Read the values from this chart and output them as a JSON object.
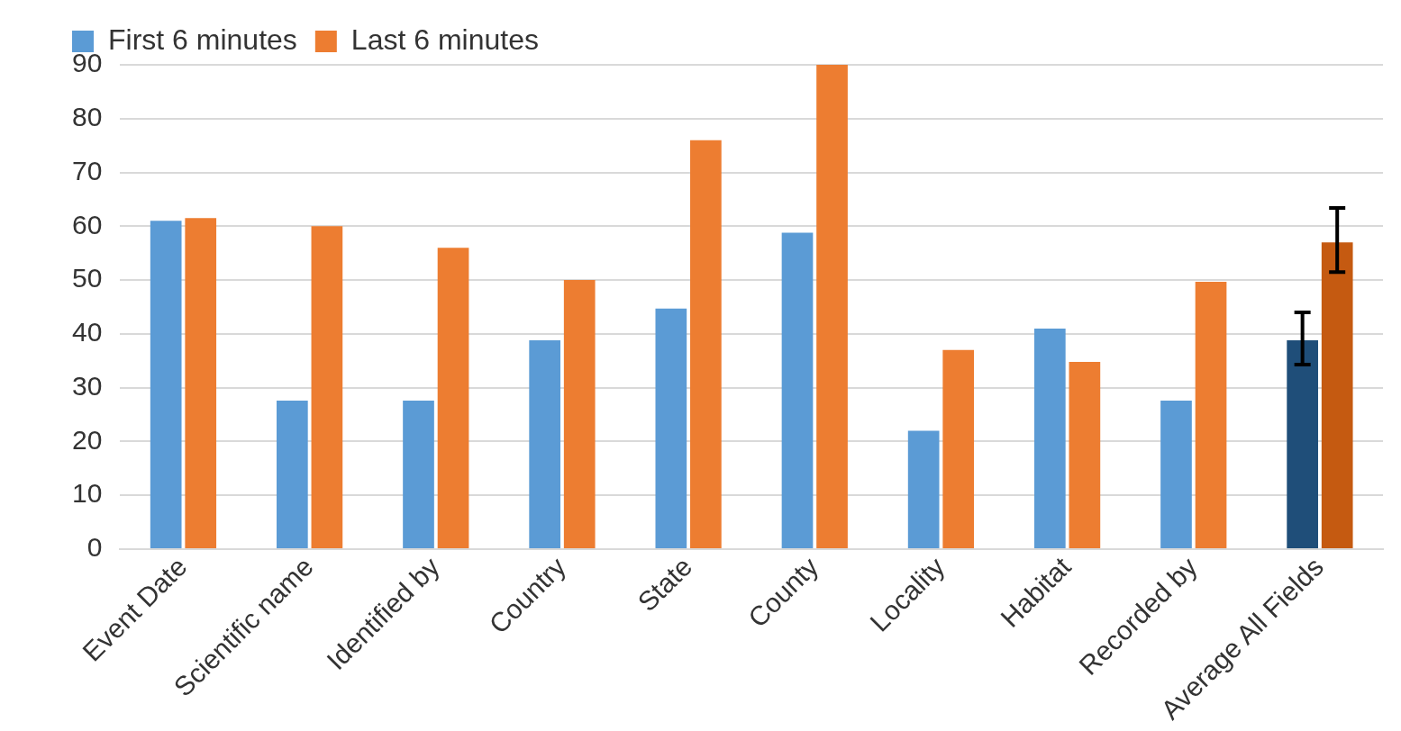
{
  "chart_data": {
    "type": "bar",
    "categories": [
      "Event Date",
      "Scientific name",
      "Identified by",
      "Country",
      "State",
      "County",
      "Locality",
      "Habitat",
      "Recorded by",
      "Average All Fields"
    ],
    "series": [
      {
        "name": "First 6 minutes",
        "color": "#5b9bd5",
        "colors": [
          "#5b9bd5",
          "#5b9bd5",
          "#5b9bd5",
          "#5b9bd5",
          "#5b9bd5",
          "#5b9bd5",
          "#5b9bd5",
          "#5b9bd5",
          "#5b9bd5",
          "#1f4e79"
        ],
        "values": [
          61,
          27.6,
          27.6,
          38.8,
          44.7,
          58.8,
          22,
          41,
          27.6,
          38.8
        ],
        "errors": [
          null,
          null,
          null,
          null,
          null,
          null,
          null,
          null,
          null,
          [
            34.3,
            44
          ]
        ]
      },
      {
        "name": "Last 6 minutes",
        "color": "#ed7d31",
        "colors": [
          "#ed7d31",
          "#ed7d31",
          "#ed7d31",
          "#ed7d31",
          "#ed7d31",
          "#ed7d31",
          "#ed7d31",
          "#ed7d31",
          "#ed7d31",
          "#c55a11"
        ],
        "values": [
          61.5,
          60,
          56,
          50,
          76,
          90,
          37,
          34.8,
          49.7,
          57
        ],
        "errors": [
          null,
          null,
          null,
          null,
          null,
          null,
          null,
          null,
          null,
          [
            51.5,
            63.4
          ]
        ]
      }
    ],
    "ylim": [
      0,
      90
    ],
    "yticks": [
      0,
      10,
      20,
      30,
      40,
      50,
      60,
      70,
      80,
      90
    ],
    "grid": "y",
    "legend": "top left"
  }
}
